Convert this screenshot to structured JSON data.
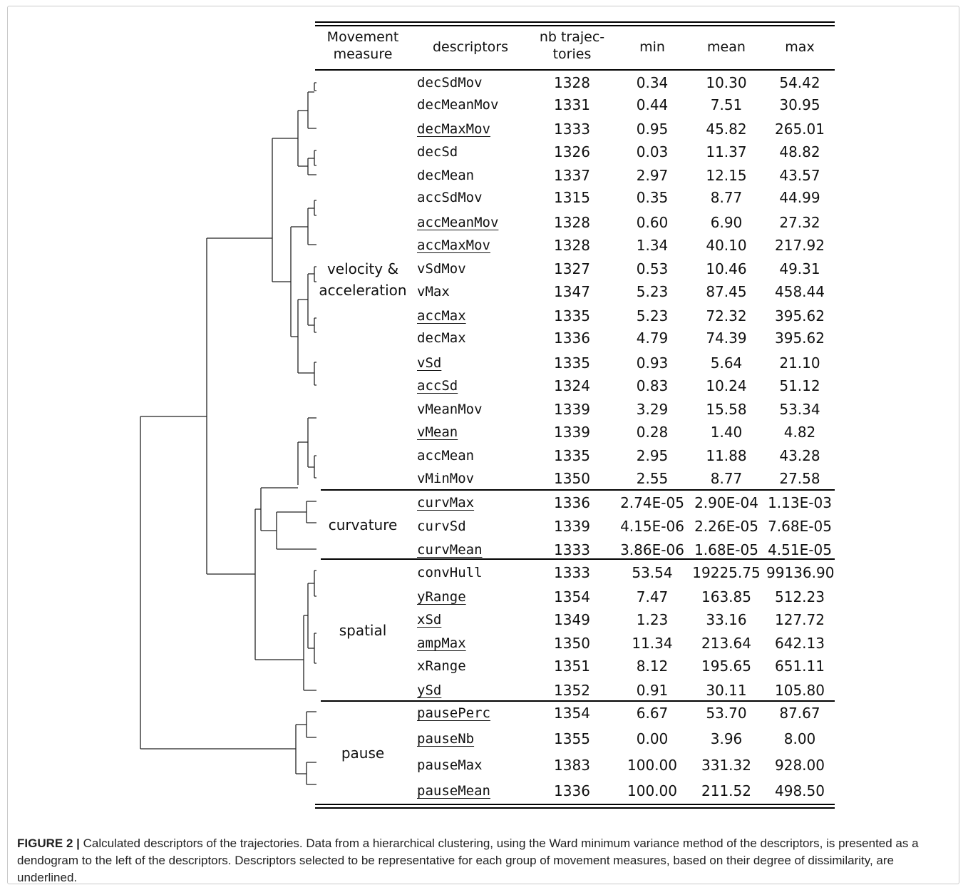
{
  "table": {
    "headers": {
      "measure": [
        "Movement",
        "measure"
      ],
      "descriptors": "descriptors",
      "nb": [
        "nb trajec-",
        "tories"
      ],
      "min": "min",
      "mean": "mean",
      "max": "max"
    },
    "groups": [
      {
        "label": [
          "velocity &",
          "acceleration"
        ]
      },
      {
        "label": [
          "curvature"
        ]
      },
      {
        "label": [
          "spatial"
        ]
      },
      {
        "label": [
          "pause"
        ]
      }
    ],
    "rows": [
      {
        "name": "decSdMov",
        "nb": "1328",
        "min": "0.34",
        "mean": "10.30",
        "max": "54.42",
        "underlined": false
      },
      {
        "name": "decMeanMov",
        "nb": "1331",
        "min": "0.44",
        "mean": "7.51",
        "max": "30.95",
        "underlined": false
      },
      {
        "name": "decMaxMov",
        "nb": "1333",
        "min": "0.95",
        "mean": "45.82",
        "max": "265.01",
        "underlined": true
      },
      {
        "name": "decSd",
        "nb": "1326",
        "min": "0.03",
        "mean": "11.37",
        "max": "48.82",
        "underlined": false
      },
      {
        "name": "decMean",
        "nb": "1337",
        "min": "2.97",
        "mean": "12.15",
        "max": "43.57",
        "underlined": false
      },
      {
        "name": "accSdMov",
        "nb": "1315",
        "min": "0.35",
        "mean": "8.77",
        "max": "44.99",
        "underlined": false
      },
      {
        "name": "accMeanMov",
        "nb": "1328",
        "min": "0.60",
        "mean": "6.90",
        "max": "27.32",
        "underlined": true
      },
      {
        "name": "accMaxMov",
        "nb": "1328",
        "min": "1.34",
        "mean": "40.10",
        "max": "217.92",
        "underlined": true
      },
      {
        "name": "vSdMov",
        "nb": "1327",
        "min": "0.53",
        "mean": "10.46",
        "max": "49.31",
        "underlined": false
      },
      {
        "name": "vMax",
        "nb": "1347",
        "min": "5.23",
        "mean": "87.45",
        "max": "458.44",
        "underlined": false
      },
      {
        "name": "accMax",
        "nb": "1335",
        "min": "5.23",
        "mean": "72.32",
        "max": "395.62",
        "underlined": true
      },
      {
        "name": "decMax",
        "nb": "1336",
        "min": "4.79",
        "mean": "74.39",
        "max": "395.62",
        "underlined": false
      },
      {
        "name": "vSd",
        "nb": "1335",
        "min": "0.93",
        "mean": "5.64",
        "max": "21.10",
        "underlined": true
      },
      {
        "name": "accSd",
        "nb": "1324",
        "min": "0.83",
        "mean": "10.24",
        "max": "51.12",
        "underlined": true
      },
      {
        "name": "vMeanMov",
        "nb": "1339",
        "min": "3.29",
        "mean": "15.58",
        "max": "53.34",
        "underlined": false
      },
      {
        "name": "vMean",
        "nb": "1339",
        "min": "0.28",
        "mean": "1.40",
        "max": "4.82",
        "underlined": true
      },
      {
        "name": "accMean",
        "nb": "1335",
        "min": "2.95",
        "mean": "11.88",
        "max": "43.28",
        "underlined": false
      },
      {
        "name": "vMinMov",
        "nb": "1350",
        "min": "2.55",
        "mean": "8.77",
        "max": "27.58",
        "underlined": false
      },
      {
        "name": "curvMax",
        "nb": "1336",
        "min": "2.74E-05",
        "mean": "2.90E-04",
        "max": "1.13E-03",
        "underlined": true
      },
      {
        "name": "curvSd",
        "nb": "1339",
        "min": "4.15E-06",
        "mean": "2.26E-05",
        "max": "7.68E-05",
        "underlined": false
      },
      {
        "name": "curvMean",
        "nb": "1333",
        "min": "3.86E-06",
        "mean": "1.68E-05",
        "max": "4.51E-05",
        "underlined": true
      },
      {
        "name": "convHull",
        "nb": "1333",
        "min": "53.54",
        "mean": "19225.75",
        "max": "99136.90",
        "underlined": false
      },
      {
        "name": "yRange",
        "nb": "1354",
        "min": "7.47",
        "mean": "163.85",
        "max": "512.23",
        "underlined": true
      },
      {
        "name": "xSd",
        "nb": "1349",
        "min": "1.23",
        "mean": "33.16",
        "max": "127.72",
        "underlined": true
      },
      {
        "name": "ampMax",
        "nb": "1350",
        "min": "11.34",
        "mean": "213.64",
        "max": "642.13",
        "underlined": true
      },
      {
        "name": "xRange",
        "nb": "1351",
        "min": "8.12",
        "mean": "195.65",
        "max": "651.11",
        "underlined": false
      },
      {
        "name": "ySd",
        "nb": "1352",
        "min": "0.91",
        "mean": "30.11",
        "max": "105.80",
        "underlined": true
      },
      {
        "name": "pausePerc",
        "nb": "1354",
        "min": "6.67",
        "mean": "53.70",
        "max": "87.67",
        "underlined": true
      },
      {
        "name": "pauseNb",
        "nb": "1355",
        "min": "0.00",
        "mean": "3.96",
        "max": "8.00",
        "underlined": true
      },
      {
        "name": "pauseMax",
        "nb": "1383",
        "min": "100.00",
        "mean": "331.32",
        "max": "928.00",
        "underlined": false
      },
      {
        "name": "pauseMean",
        "nb": "1336",
        "min": "100.00",
        "mean": "211.52",
        "max": "498.50",
        "underlined": true
      }
    ]
  },
  "caption": {
    "label": "FIGURE 2 |",
    "text": " Calculated descriptors of the trajectories. Data from a hierarchical clustering, using the Ward minimum variance method of the descriptors, is presented as a dendogram to the left of the descriptors. Descriptors selected to be representative for each group of movement measures, based on their degree of dissimilarity, are underlined."
  }
}
